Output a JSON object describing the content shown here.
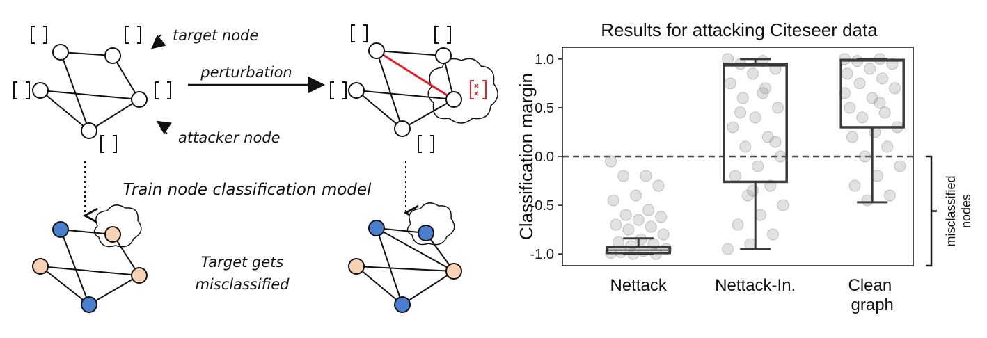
{
  "diagram": {
    "target_label": "target node",
    "attacker_label": "attacker node",
    "perturbation_label": "perturbation",
    "train_label": "Train node classification model",
    "result_label": [
      "Target gets",
      "misclassified"
    ]
  },
  "chart_data": {
    "type": "box",
    "title": "Results for attacking Citeseer data",
    "y_label": "Classification margin",
    "categories": [
      "Nettack",
      "Nettack-In.",
      "Clean graph"
    ],
    "ylim": [
      -1.12,
      1.12
    ],
    "yticks": [
      {
        "value": -1,
        "label": "-1.0"
      },
      -0.5,
      {
        "value": 0,
        "label": "0.0"
      },
      0.5,
      {
        "value": 1,
        "label": "1.0"
      }
    ],
    "reference_line": 0,
    "annotation": [
      "misclassified",
      "nodes"
    ],
    "box_color": "#3a3a3a",
    "point_color": "#9a9a9a",
    "boxes": [
      {
        "whisker_low": -1.0,
        "q1": -0.99,
        "median": -0.96,
        "q3": -0.93,
        "whisker_high": -0.84,
        "points": [
          -0.05,
          -0.2,
          -0.2,
          -0.3,
          -0.4,
          -0.45,
          -0.55,
          -0.6,
          -0.62,
          -0.65,
          -0.7,
          -0.72,
          -0.75,
          -0.8,
          -0.85,
          -0.88,
          -0.9,
          -0.92,
          -0.95,
          -0.97,
          -0.98,
          -1.0,
          -1.0,
          -0.99
        ]
      },
      {
        "whisker_low": -0.95,
        "q1": -0.26,
        "median": 0.93,
        "q3": 0.95,
        "whisker_high": 1.0,
        "points": [
          1.0,
          0.98,
          0.95,
          0.9,
          0.85,
          0.75,
          0.7,
          0.6,
          0.5,
          0.4,
          0.3,
          0.2,
          0.1,
          0.0,
          -0.1,
          -0.2,
          -0.3,
          -0.4,
          -0.5,
          -0.6,
          -0.7,
          -0.8,
          -0.9,
          -0.95,
          0.65,
          0.45,
          0.15,
          -0.35
        ]
      },
      {
        "whisker_low": -0.47,
        "q1": 0.3,
        "median": 0.98,
        "q3": 0.99,
        "whisker_high": 1.0,
        "points": [
          1.0,
          1.0,
          0.98,
          0.95,
          0.9,
          0.85,
          0.8,
          0.75,
          0.7,
          0.6,
          0.5,
          0.45,
          0.4,
          0.3,
          0.25,
          0.2,
          0.1,
          0.0,
          -0.1,
          -0.2,
          -0.3,
          -0.4,
          -0.45,
          0.65,
          0.55
        ]
      }
    ]
  }
}
